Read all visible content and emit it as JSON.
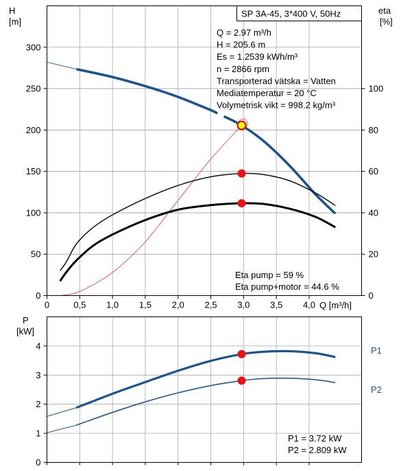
{
  "chart_data": [
    {
      "type": "line",
      "title": "SP 3A-45, 3*400 V, 50Hz",
      "xlabel": "Q [m³/h]",
      "xlim": [
        0,
        4.8
      ],
      "x_ticks": [
        "0",
        "0,5",
        "1,0",
        "1,5",
        "2,0",
        "2,5",
        "3,0",
        "3,5",
        "4,0"
      ],
      "x_tick_values": [
        0,
        0.5,
        1.0,
        1.5,
        2.0,
        2.5,
        3.0,
        3.5,
        4.0
      ],
      "y_left": {
        "label": "H",
        "unit": "[m]",
        "lim": [
          0,
          350
        ],
        "ticks": [
          0,
          50,
          100,
          150,
          200,
          250,
          300
        ]
      },
      "y_right": {
        "label": "eta",
        "unit": "[%]",
        "lim": [
          0,
          140
        ],
        "ticks": [
          0,
          20,
          40,
          60,
          80,
          100
        ]
      },
      "grid": true,
      "info_lines": [
        "Q = 2.97 m³/h",
        "H = 205.6 m",
        "Es = 1.2539 kWh/m³",
        "n = 2866 rpm",
        "Transporterad vätska = Vatten",
        "Mediatemperatur = 20 °C",
        "Volymetrisk vikt = 998.2 kg/m³"
      ],
      "bottom_lines": [
        "Eta pump = 59 %",
        "Eta pump+motor = 44.6 %"
      ],
      "series": [
        {
          "role": "head_extension",
          "axis": "left",
          "x": [
            0,
            0.45
          ],
          "y": [
            282,
            273.5
          ]
        },
        {
          "role": "head",
          "axis": "left",
          "x": [
            0.45,
            1.0,
            1.5,
            2.0,
            2.5,
            2.6
          ],
          "y": [
            273.5,
            264,
            253,
            240,
            224,
            220
          ]
        },
        {
          "role": "head",
          "axis": "left",
          "x": [
            2.7,
            2.97,
            3.3,
            3.7,
            4.1,
            4.4
          ],
          "y": [
            216.5,
            205.6,
            187,
            157,
            122,
            99
          ]
        },
        {
          "role": "system_curve",
          "axis": "left",
          "x": [
            0.2,
            0.5,
            1.0,
            1.5,
            2.0,
            2.5,
            2.97,
            3.0
          ],
          "y": [
            0,
            5,
            28,
            65,
            115,
            165,
            205.6,
            210
          ]
        },
        {
          "role": "eta_pump",
          "axis": "right",
          "x": [
            0.2,
            0.3,
            0.45,
            0.7,
            1.0,
            1.5,
            2.0,
            2.5,
            2.97,
            3.3,
            3.7,
            4.1,
            4.4
          ],
          "y": [
            12,
            16.5,
            25,
            32.8,
            39,
            46.9,
            53.2,
            57.4,
            59,
            58.5,
            55.5,
            49.5,
            43.5
          ]
        },
        {
          "role": "eta_pump_motor",
          "axis": "right",
          "x": [
            0.2,
            0.3,
            0.45,
            0.7,
            1.0,
            1.5,
            2.0,
            2.5,
            2.97,
            3.3,
            3.7,
            4.1,
            4.4
          ],
          "y": [
            7,
            11.5,
            17,
            24,
            29.5,
            36.5,
            41.5,
            43.7,
            44.6,
            44.3,
            42,
            38,
            33
          ]
        }
      ],
      "markers": [
        {
          "axis": "left",
          "x": 2.97,
          "y": 205.6,
          "fill": "#ffff00",
          "stroke": "#e00000"
        },
        {
          "axis": "right",
          "x": 2.97,
          "y": 59,
          "fill": "#ee1111",
          "stroke": "#ee1111"
        },
        {
          "axis": "right",
          "x": 2.97,
          "y": 44.6,
          "fill": "#ee1111",
          "stroke": "#ee1111"
        }
      ],
      "colors": {
        "head": "#1a5590",
        "thin_line": "#3a6a9a",
        "system": "#e34a4a",
        "eta": "#000000",
        "marker": "#ee1111",
        "grid": "#a8a8a8"
      }
    },
    {
      "type": "line",
      "xlim": [
        0,
        4.8
      ],
      "y_left": {
        "label": "P",
        "unit": "[kW]",
        "lim": [
          0,
          5
        ],
        "ticks": [
          0,
          1,
          2,
          3,
          4
        ]
      },
      "grid": true,
      "bottom_lines": [
        "P1 = 3.72 kW",
        "P2 = 2.809 kW"
      ],
      "series": [
        {
          "name": "P1",
          "x": [
            0,
            0.45
          ],
          "y": [
            1.58,
            1.88
          ]
        },
        {
          "name": "P1",
          "x": [
            0.45,
            1.0,
            1.5,
            2.0,
            2.5,
            2.97,
            3.3,
            3.7,
            4.1,
            4.4
          ],
          "y": [
            1.88,
            2.36,
            2.76,
            3.15,
            3.49,
            3.72,
            3.8,
            3.82,
            3.75,
            3.62
          ]
        },
        {
          "name": "P2",
          "x": [
            0,
            0.45
          ],
          "y": [
            1.02,
            1.28
          ]
        },
        {
          "name": "P2",
          "x": [
            0.45,
            1.0,
            1.5,
            2.0,
            2.5,
            2.97,
            3.3,
            3.7,
            4.1,
            4.4
          ],
          "y": [
            1.28,
            1.72,
            2.08,
            2.39,
            2.64,
            2.809,
            2.88,
            2.89,
            2.84,
            2.74
          ]
        }
      ],
      "markers": [
        {
          "x": 2.97,
          "y": 3.72,
          "fill": "#ee1111",
          "stroke": "#ee1111"
        },
        {
          "x": 2.97,
          "y": 2.809,
          "fill": "#ee1111",
          "stroke": "#ee1111"
        }
      ],
      "colors": {
        "p1": "#1a5590",
        "p2": "#1f5a94",
        "label": "#1a5590",
        "grid": "#a8a8a8"
      }
    }
  ]
}
